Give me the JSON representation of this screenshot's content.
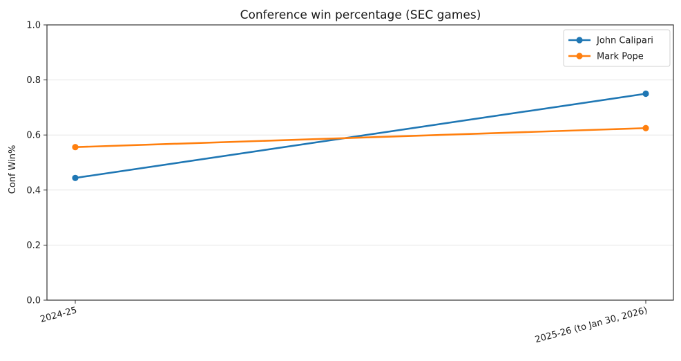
{
  "chart_data": {
    "type": "line",
    "title": "Conference win percentage (SEC games)",
    "xlabel": "",
    "ylabel": "Conf Win%",
    "categories": [
      "2024-25",
      "2025-26 (to Jan 30, 2026)"
    ],
    "ylim": [
      0.0,
      1.0
    ],
    "yticks": [
      0.0,
      0.2,
      0.4,
      0.6,
      0.8,
      1.0
    ],
    "ytick_labels": [
      "0.0",
      "0.2",
      "0.4",
      "0.6",
      "0.8",
      "1.0"
    ],
    "grid": "horizontal",
    "legend_position": "top-right",
    "series": [
      {
        "name": "John Calipari",
        "color": "#1f77b4",
        "values": [
          0.444,
          0.75
        ]
      },
      {
        "name": "Mark Pope",
        "color": "#ff7f0e",
        "values": [
          0.556,
          0.625
        ]
      }
    ]
  }
}
